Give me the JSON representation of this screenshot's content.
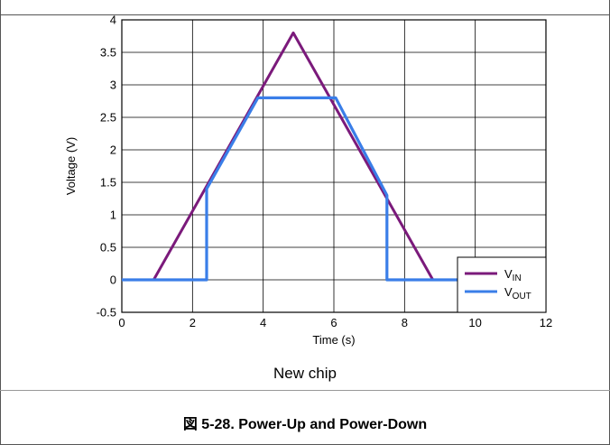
{
  "caption": "図 5-28. Power-Up and Power-Down",
  "chart_data": {
    "type": "line",
    "title": "",
    "subtitle": "New chip",
    "xlabel": "Time (s)",
    "ylabel": "Voltage (V)",
    "xlim": [
      0,
      12
    ],
    "ylim": [
      -0.5,
      4
    ],
    "xticks": [
      "0",
      "2",
      "4",
      "6",
      "8",
      "10",
      "12"
    ],
    "yticks": [
      "-0.5",
      "0",
      "0.5",
      "1",
      "1.5",
      "2",
      "2.5",
      "3",
      "3.5",
      "4"
    ],
    "grid": true,
    "legend_position": "bottom-right",
    "series": [
      {
        "name": "V_IN",
        "name_main": "V",
        "name_sub": "IN",
        "color": "#7b1a7b",
        "x": [
          0,
          0.9,
          4.85,
          8.8,
          9.5
        ],
        "y": [
          0,
          0,
          3.8,
          0,
          0
        ]
      },
      {
        "name": "V_OUT",
        "name_main": "V",
        "name_sub": "OUT",
        "color": "#3a7ee8",
        "x": [
          0,
          2.4,
          2.4,
          3.85,
          6.05,
          7.5,
          7.5,
          9.5
        ],
        "y": [
          0,
          0,
          1.4,
          2.8,
          2.8,
          1.3,
          0,
          0
        ]
      }
    ]
  }
}
